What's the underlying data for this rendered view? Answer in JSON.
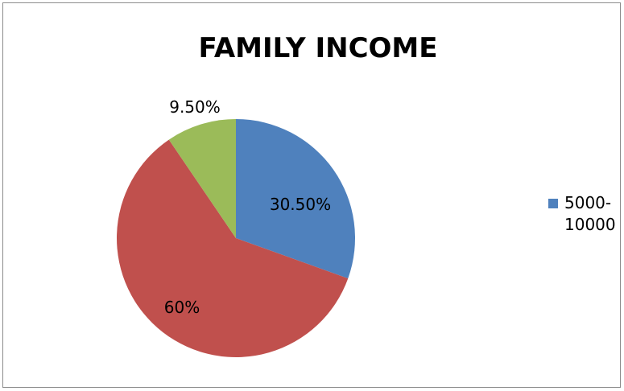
{
  "chart_data": {
    "type": "pie",
    "title": "FAMILY INCOME",
    "slices": [
      {
        "label": "5000-10000",
        "value": 30.5,
        "data_label": "30.50%",
        "color": "#4f81bd"
      },
      {
        "label": "",
        "value": 60,
        "data_label": "60%",
        "color": "#c0504d"
      },
      {
        "label": "",
        "value": 9.5,
        "data_label": "9.50%",
        "color": "#9bbb59"
      }
    ],
    "legend": {
      "position": "right",
      "entries": [
        "5000-10000"
      ]
    }
  }
}
